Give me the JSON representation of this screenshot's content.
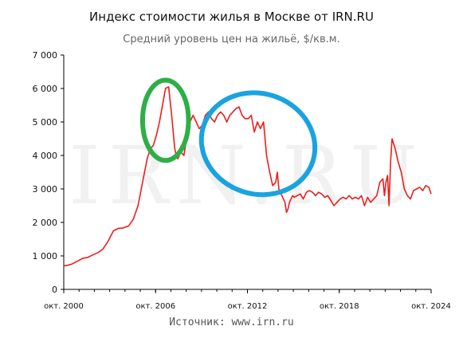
{
  "chart_data": {
    "type": "line",
    "title": "Индекс стоимости жилья в Москве от IRN.RU",
    "subtitle": "Средний уровень цен на жильё, $/кв.м.",
    "source": "Источник: www.irn.ru",
    "watermark": "IRN.RU",
    "xlabel": "",
    "ylabel": "",
    "ylim": [
      0,
      7000
    ],
    "xlim": [
      2000.75,
      2024.75
    ],
    "yticks": [
      "0",
      "1 000",
      "2 000",
      "3 000",
      "4 000",
      "5 000",
      "6 000",
      "7 000"
    ],
    "xticks": [
      {
        "t": 2000.75,
        "label": "окт. 2000"
      },
      {
        "t": 2006.75,
        "label": "окт. 2006"
      },
      {
        "t": 2012.75,
        "label": "окт. 2012"
      },
      {
        "t": 2018.75,
        "label": "окт. 2018"
      },
      {
        "t": 2024.75,
        "label": "окт. 2024"
      }
    ],
    "grid": false,
    "line_color": "#ee1c1c",
    "series": [
      {
        "x": [
          2000.75,
          2001.0,
          2001.3,
          2001.6,
          2002.0,
          2002.3,
          2002.6,
          2003.0,
          2003.3,
          2003.6,
          2004.0,
          2004.3,
          2004.6,
          2005.0,
          2005.3,
          2005.6,
          2005.9,
          2006.2,
          2006.4,
          2006.6,
          2006.8,
          2007.0,
          2007.2,
          2007.4,
          2007.6,
          2007.8,
          2008.0,
          2008.1,
          2008.2,
          2008.4,
          2008.6,
          2008.8,
          2009.0,
          2009.2,
          2009.4,
          2009.6,
          2009.8,
          2010.0,
          2010.2,
          2010.4,
          2010.6,
          2010.8,
          2011.0,
          2011.2,
          2011.4,
          2011.6,
          2011.8,
          2012.0,
          2012.2,
          2012.4,
          2012.6,
          2012.8,
          2013.0,
          2013.2,
          2013.4,
          2013.6,
          2013.8,
          2014.0,
          2014.2,
          2014.4,
          2014.6,
          2014.7,
          2014.8,
          2014.9,
          2015.0,
          2015.1,
          2015.2,
          2015.3,
          2015.4,
          2015.5,
          2015.6,
          2015.7,
          2015.8,
          2016.0,
          2016.2,
          2016.4,
          2016.6,
          2016.8,
          2017.0,
          2017.2,
          2017.4,
          2017.6,
          2017.8,
          2018.0,
          2018.2,
          2018.4,
          2018.6,
          2018.8,
          2019.0,
          2019.2,
          2019.4,
          2019.6,
          2019.8,
          2020.0,
          2020.2,
          2020.4,
          2020.6,
          2020.8,
          2021.0,
          2021.2,
          2021.4,
          2021.6,
          2021.7,
          2021.8,
          2021.9,
          2022.0,
          2022.1,
          2022.2,
          2022.4,
          2022.6,
          2022.8,
          2023.0,
          2023.2,
          2023.4,
          2023.6,
          2023.8,
          2024.0,
          2024.2,
          2024.4,
          2024.6,
          2024.75
        ],
        "values": [
          700,
          720,
          760,
          830,
          930,
          950,
          1020,
          1100,
          1200,
          1400,
          1750,
          1820,
          1830,
          1900,
          2100,
          2500,
          3200,
          3900,
          4200,
          4300,
          4600,
          5000,
          5500,
          6000,
          6050,
          5200,
          4200,
          4000,
          3900,
          4100,
          4000,
          4600,
          5000,
          5200,
          5000,
          4800,
          4900,
          5200,
          5300,
          5100,
          5000,
          5200,
          5300,
          5200,
          5000,
          5200,
          5300,
          5400,
          5450,
          5200,
          5100,
          5100,
          5200,
          4700,
          5000,
          4800,
          5000,
          4000,
          3500,
          3100,
          3200,
          3500,
          3000,
          2900,
          2800,
          2700,
          2600,
          2300,
          2400,
          2600,
          2700,
          2800,
          2750,
          2800,
          2850,
          2700,
          2900,
          2950,
          2900,
          2800,
          2900,
          2850,
          2750,
          2800,
          2650,
          2500,
          2600,
          2700,
          2750,
          2700,
          2800,
          2700,
          2750,
          2700,
          2800,
          2500,
          2750,
          2600,
          2700,
          2800,
          3200,
          3300,
          2800,
          3200,
          3400,
          2500,
          3800,
          4500,
          4200,
          3800,
          3500,
          3000,
          2800,
          2700,
          2950,
          3000,
          3050,
          2950,
          3100,
          3050,
          2850
        ]
      }
    ],
    "annotations": [
      {
        "shape": "ellipse",
        "color": "#2eaf45",
        "label": ""
      },
      {
        "shape": "ellipse",
        "color": "#19a3e0",
        "label": ""
      }
    ]
  }
}
